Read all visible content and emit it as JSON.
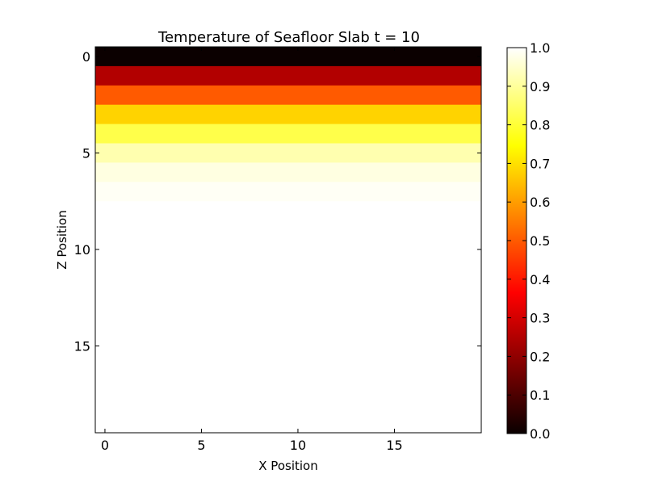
{
  "chart_data": {
    "type": "heatmap",
    "title": "Temperature of Seafloor Slab t = 10",
    "xlabel": "X Position",
    "ylabel": "Z Position",
    "grid_shape": [
      20,
      20
    ],
    "xlim": [
      -0.5,
      19.5
    ],
    "ylim": [
      19.5,
      -0.5
    ],
    "xticks": [
      0,
      5,
      10,
      15
    ],
    "yticks": [
      0,
      5,
      10,
      15
    ],
    "colormap": "hot",
    "colorbar": {
      "vmin": 0.0,
      "vmax": 1.0,
      "ticks": [
        "0.0",
        "0.1",
        "0.2",
        "0.3",
        "0.4",
        "0.5",
        "0.6",
        "0.7",
        "0.8",
        "0.9",
        "1.0"
      ]
    },
    "row_values": [
      0.0,
      0.25,
      0.5,
      0.68,
      0.82,
      0.92,
      0.97,
      0.99,
      1.0,
      1.0,
      1.0,
      1.0,
      1.0,
      1.0,
      1.0,
      1.0,
      1.0,
      1.0,
      1.0,
      1.0
    ],
    "row_values_note_x_independent": true
  }
}
